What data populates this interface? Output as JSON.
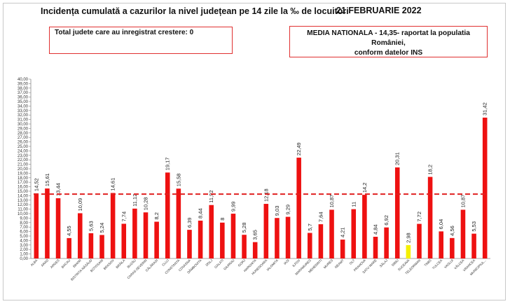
{
  "header": {
    "title": "Incidența cumulată a cazurilor la nivel județean pe 14 zile la ‰ de locuitori",
    "date": "21 FEBRUARIE 2022"
  },
  "info_box": {
    "text": "Total judete care au inregistrat crestere: 0"
  },
  "national_box": {
    "line1": "MEDIA NATIONALA - 14,35-  raportat la populatia României,",
    "line2": "conform datelor INS"
  },
  "colors": {
    "bar": "#ee1111",
    "highlight": "#f5f000",
    "reference_line": "#e02020"
  },
  "chart_data": {
    "type": "bar",
    "title": "Incidența cumulată a cazurilor la nivel județean pe 14 zile la ‰ de locuitori",
    "xlabel": "",
    "ylabel": "",
    "ylim": [
      0,
      40
    ],
    "ytick_step": 1,
    "ytick_labels": [
      "0,00",
      "1,00",
      "2,00",
      "3,00",
      "4,00",
      "5,00",
      "6,00",
      "7,00",
      "8,00",
      "9,00",
      "10,00",
      "11,00",
      "12,00",
      "13,00",
      "14,00",
      "15,00",
      "16,00",
      "17,00",
      "18,00",
      "19,00",
      "20,00",
      "21,00",
      "22,00",
      "23,00",
      "24,00",
      "25,00",
      "26,00",
      "27,00",
      "28,00",
      "29,00",
      "30,00",
      "31,00",
      "32,00",
      "33,00",
      "34,00",
      "35,00",
      "36,00",
      "37,00",
      "38,00",
      "39,00",
      "40,00"
    ],
    "categories": [
      "ALBA",
      "ARAD",
      "ARGES",
      "BACAU",
      "BIHOR",
      "BISTRITA-NASAUD",
      "BOTOSANI",
      "BRASOV",
      "BRAILA",
      "BUZAU",
      "CARAS-SEVERIN",
      "CALARASI",
      "CLUJ",
      "CONSTANTA",
      "COVASNA",
      "DAMBOVITA",
      "DOLJ",
      "GALATI",
      "GIURGIU",
      "GORJ",
      "HARGHITA",
      "HUNEDOARA",
      "IALOMITA",
      "IASI",
      "ILFOV",
      "MARAMURES",
      "MEHEDINTI",
      "MURES",
      "NEAMT",
      "OLT",
      "PRAHOVA",
      "SATU MARE",
      "SALAJ",
      "SIBIU",
      "SUCEAVA",
      "TELEORMAN",
      "TIMIS",
      "TULCEA",
      "VASLUI",
      "VALCEA",
      "VRANCEA",
      "MUNICIPIUL BUCURESTI"
    ],
    "category_labels": [
      "ALBA",
      "ARAD",
      "ARGES",
      "BACAU",
      "BIHOR",
      "BISTRITA-NĂSĂUD",
      "BOTOSANI",
      "BRASOV",
      "BRĂILA",
      "BUZĂU",
      "CARAS-SEVERIN",
      "CĂLĂRASI",
      "CLUJ",
      "CONSTANTA",
      "COVASNA",
      "DÂMBOVITA",
      "DOLJ",
      "GALATI",
      "GIURGIU",
      "GORJ",
      "HARGHITA",
      "HUNEDOARA",
      "IALOMITA",
      "IASI",
      "ILFOV",
      "MARAMURES",
      "MEHEDINTI",
      "MURES",
      "NEAMT",
      "OLT",
      "PRAHOVA",
      "SATU MARE",
      "SĂLAJ",
      "SIBIU",
      "SUCEAVA",
      "TELEORMAN",
      "TIMIS",
      "TULCEA",
      "VASLUI",
      "VÂLCEA",
      "VRANCEA",
      "MUNICIPIUL..."
    ],
    "values": [
      14.52,
      15.61,
      13.44,
      4.55,
      10.09,
      5.63,
      5.24,
      14.61,
      7.74,
      11.12,
      10.28,
      8.2,
      19.17,
      15.58,
      6.39,
      8.44,
      11.92,
      8,
      9.99,
      5.28,
      3.65,
      12.18,
      9.03,
      9.29,
      22.49,
      5.7,
      7.64,
      10.87,
      4.21,
      11,
      14.2,
      4.84,
      6.92,
      20.31,
      2.98,
      7.72,
      18.2,
      6.04,
      4.56,
      10.87,
      5.53,
      31.42
    ],
    "value_labels": [
      "14,52",
      "15,61",
      "13,44",
      "4,55",
      "10,09",
      "5,63",
      "5,24",
      "14,61",
      "7,74",
      "11,12",
      "10,28",
      "8,2",
      "19,17",
      "15,58",
      "6,39",
      "8,44",
      "11,92",
      "8",
      "9,99",
      "5,28",
      "3,65",
      "12,18",
      "9,03",
      "9,29",
      "22,49",
      "5,7",
      "7,64",
      "10,87",
      "4,21",
      "11",
      "14,2",
      "4,84",
      "6,92",
      "20,31",
      "2,98",
      "7,72",
      "18,2",
      "6,04",
      "4,56",
      "10,87",
      "5,53",
      "31,42"
    ],
    "highlight_category": "SUCEAVA",
    "reference_line": {
      "value": 14.35
    },
    "grid": false,
    "legend": "none"
  }
}
